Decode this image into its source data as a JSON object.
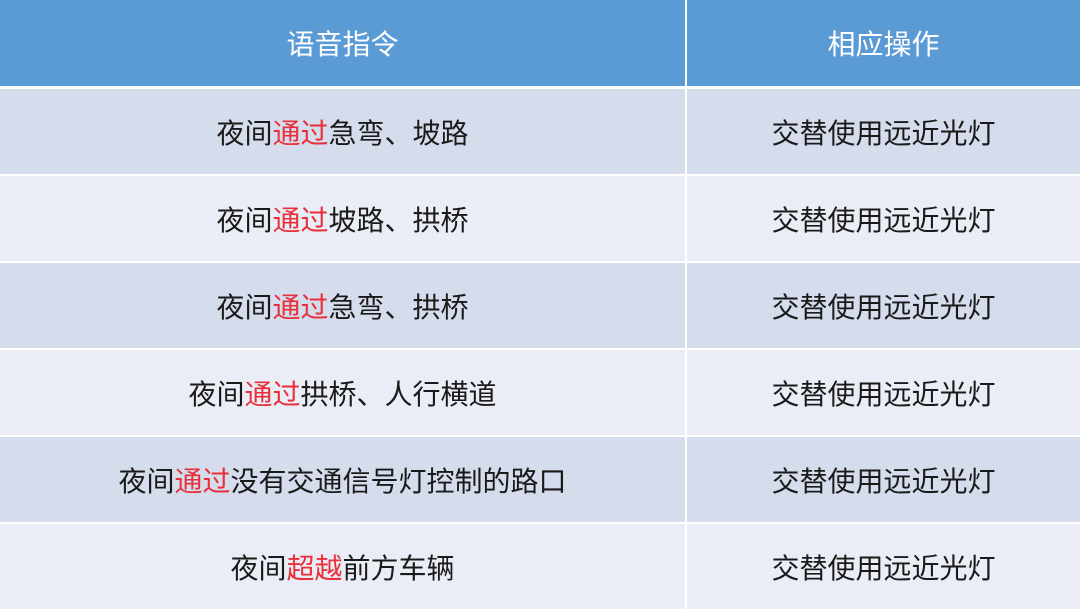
{
  "header": {
    "command": "语音指令",
    "action": "相应操作"
  },
  "accent_color": "#e8303a",
  "header_color": "#5b9bd5",
  "rows": [
    {
      "prefix": "夜间",
      "highlight": "通过",
      "suffix": "急弯、坡路",
      "action": "交替使用远近光灯"
    },
    {
      "prefix": "夜间",
      "highlight": "通过",
      "suffix": "坡路、拱桥",
      "action": "交替使用远近光灯"
    },
    {
      "prefix": "夜间",
      "highlight": "通过",
      "suffix": "急弯、拱桥",
      "action": "交替使用远近光灯"
    },
    {
      "prefix": "夜间",
      "highlight": "通过",
      "suffix": "拱桥、人行横道",
      "action": "交替使用远近光灯"
    },
    {
      "prefix": "夜间",
      "highlight": "通过",
      "suffix": "没有交通信号灯控制的路口",
      "action": "交替使用远近光灯"
    },
    {
      "prefix": "夜间",
      "highlight": "超越",
      "suffix": "前方车辆",
      "action": "交替使用远近光灯"
    }
  ]
}
